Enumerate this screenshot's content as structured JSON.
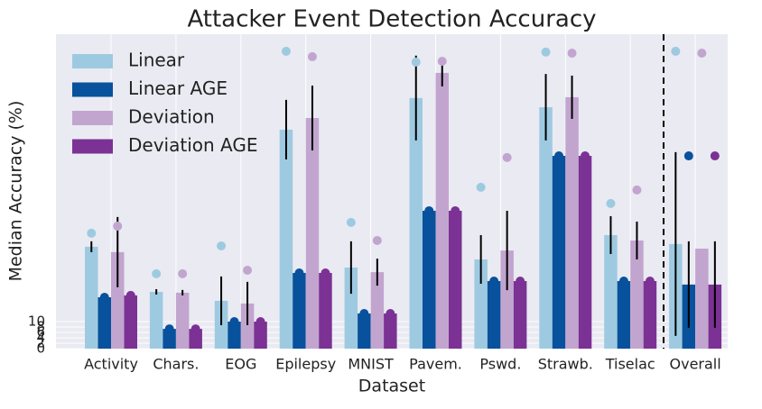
{
  "chart_data": {
    "type": "bar",
    "title": "Attacker Event Detection Accuracy",
    "x_label": "Dataset",
    "y_label": "Median Accuracy (%)",
    "categories": [
      "Activity",
      "Chars.",
      "EOG",
      "Epilepsy",
      "MNIST",
      "Pavem.",
      "Pswd.",
      "Strawb.",
      "Tiselac",
      "Overall"
    ],
    "series": [
      {
        "name": "Linear",
        "color": "#9ecae1",
        "values": [
          37.7,
          21,
          17.7,
          81,
          30,
          92.7,
          33,
          89.3,
          42,
          38.7
        ],
        "errors": [
          2,
          1,
          9,
          11,
          9.7,
          15.7,
          9,
          12.3,
          7,
          34
        ],
        "max": [
          42.7,
          27.7,
          38,
          110,
          46.7,
          106,
          59.7,
          109.7,
          53.7,
          110
        ]
      },
      {
        "name": "Linear AGE",
        "color": "#08519c",
        "values": [
          19,
          7.3,
          10,
          28,
          13,
          51,
          25,
          71.3,
          25,
          23.7
        ],
        "errors": [
          0,
          0,
          0,
          0,
          0,
          0,
          0,
          0,
          0,
          16
        ],
        "max": [
          19,
          7.3,
          10,
          28,
          13,
          51,
          25,
          71.3,
          25,
          71.3
        ]
      },
      {
        "name": "Deviation",
        "color": "#c2a5cf",
        "values": [
          35.7,
          20.7,
          16.7,
          85.3,
          28.3,
          102,
          36.3,
          93,
          40,
          37
        ],
        "errors": [
          13,
          1,
          8,
          12,
          5,
          5,
          14.7,
          8,
          7,
          0
        ],
        "max": [
          45.3,
          27.7,
          29,
          108,
          40,
          106.3,
          70.7,
          109.3,
          58.7,
          109.3
        ]
      },
      {
        "name": "Deviation AGE",
        "color": "#7b3294",
        "values": [
          19.7,
          7.3,
          10,
          28,
          13,
          51,
          25,
          71.3,
          25,
          23.7
        ],
        "errors": [
          0,
          0,
          0,
          0,
          0,
          0,
          0,
          0,
          0,
          16
        ],
        "max": [
          19.7,
          7.3,
          10,
          28,
          13,
          51,
          25,
          71.3,
          25,
          71.3
        ]
      }
    ],
    "ylim": [
      0,
      116.3
    ],
    "yticks": [
      0,
      2,
      4,
      6,
      8,
      10
    ],
    "grid": true,
    "legend": "upper-left"
  }
}
